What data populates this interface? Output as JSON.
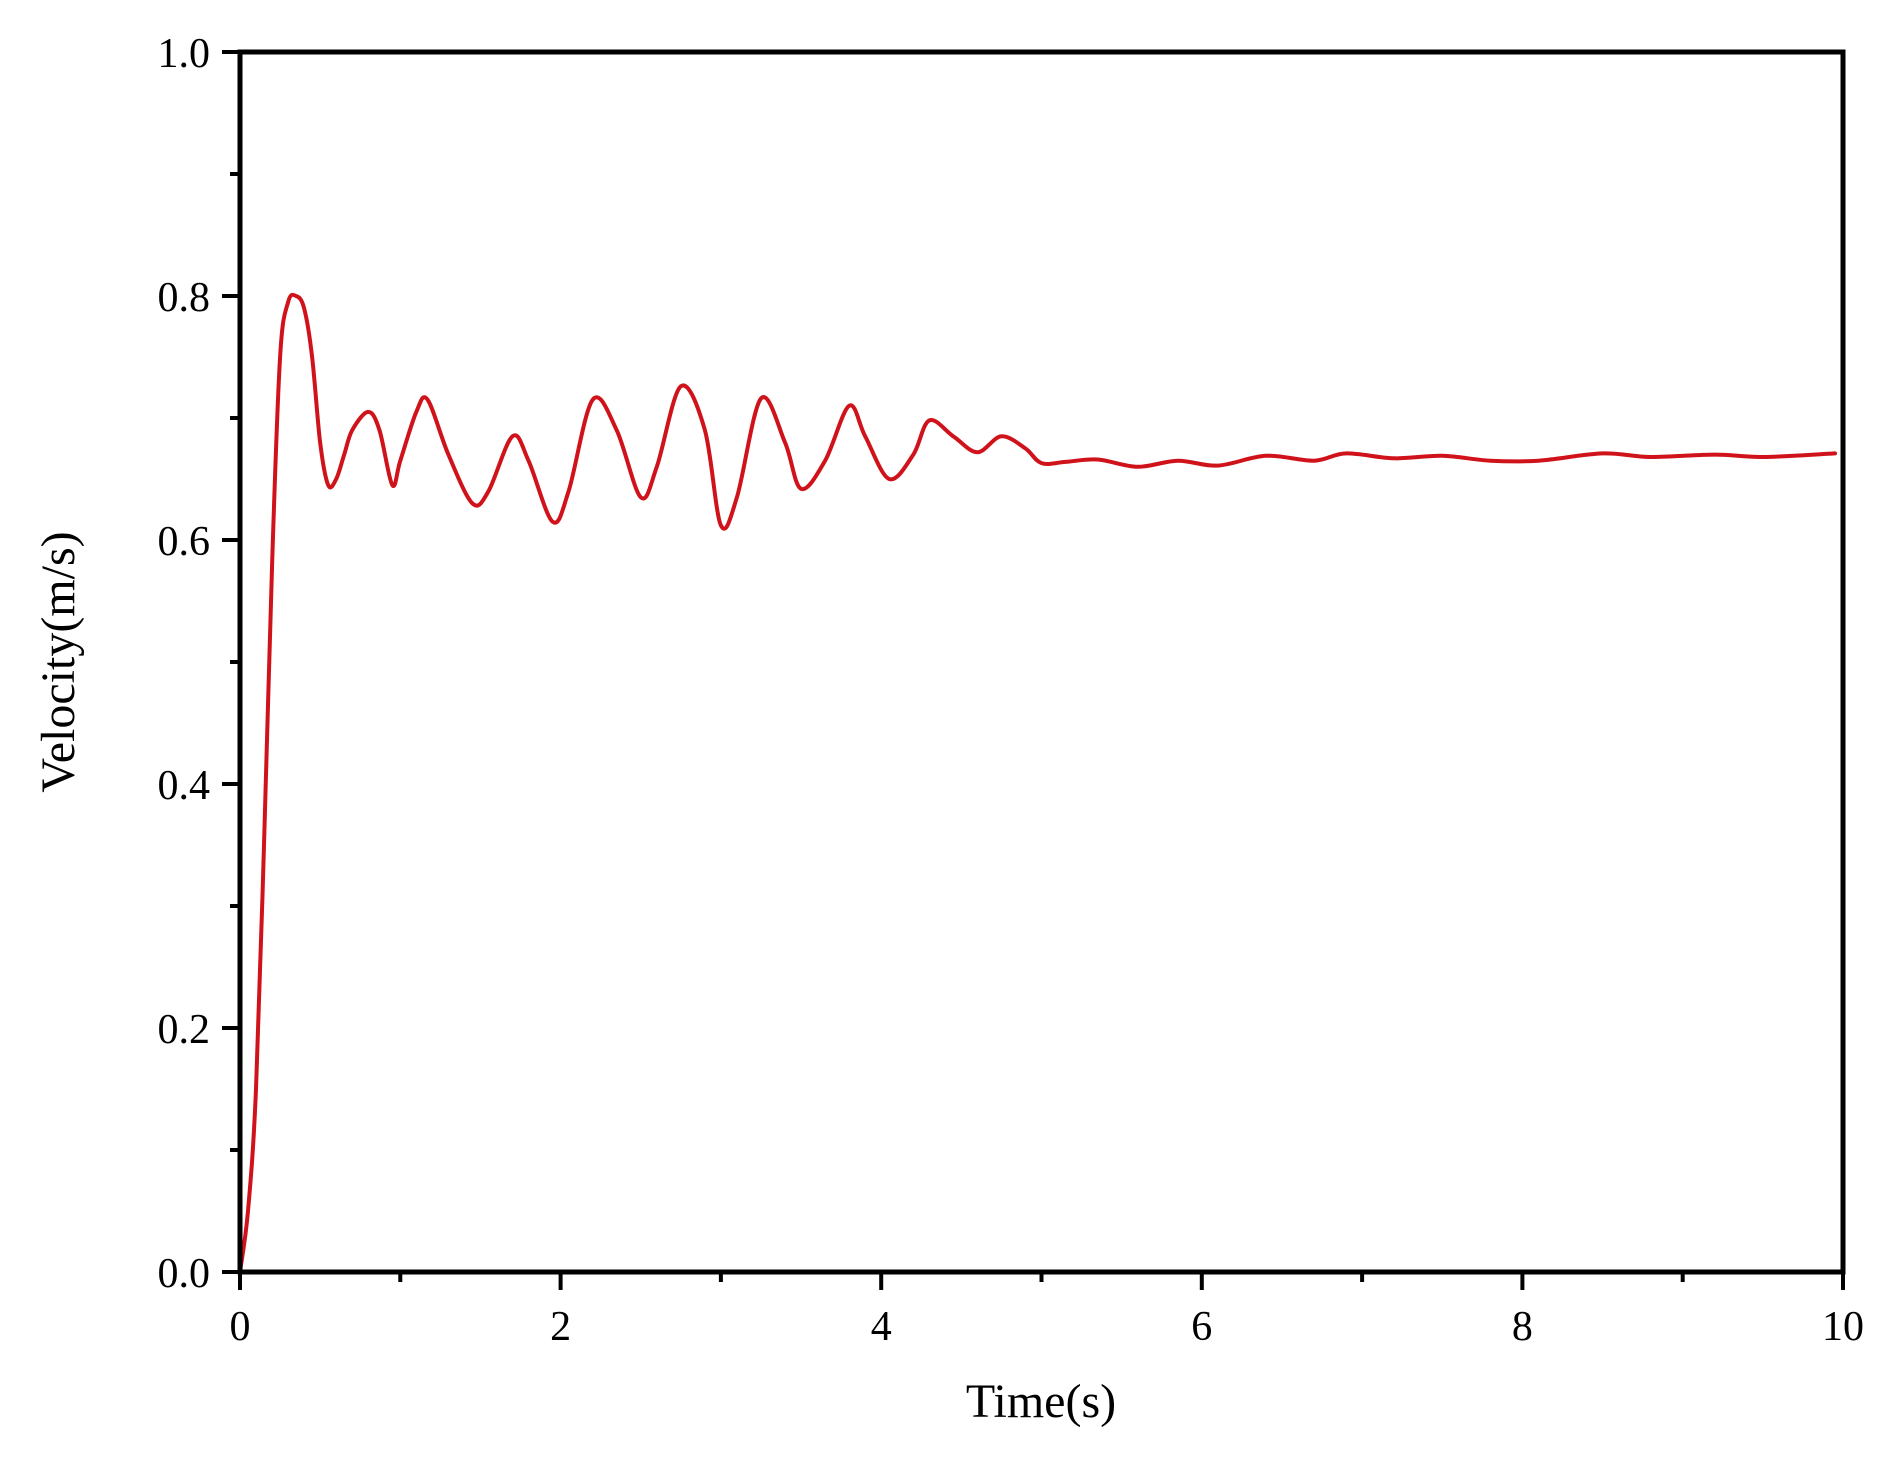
{
  "chart_data": {
    "type": "line",
    "title": "",
    "xlabel": "Time(s)",
    "ylabel": "Velocity(m/s)",
    "xlim": [
      0,
      10
    ],
    "ylim": [
      0,
      1.0
    ],
    "x_ticks": [
      0,
      2,
      4,
      6,
      8,
      10
    ],
    "x_tick_labels": [
      "0",
      "2",
      "4",
      "6",
      "8",
      "10"
    ],
    "y_ticks": [
      0.0,
      0.2,
      0.4,
      0.6,
      0.8,
      1.0
    ],
    "y_tick_labels": [
      "0.0",
      "0.2",
      "0.4",
      "0.6",
      "0.8",
      "1.0"
    ],
    "grid": false,
    "legend": "none",
    "line_color": "#d0121b",
    "series": [
      {
        "x": [
          0,
          0.05,
          0.1,
          0.15,
          0.2,
          0.25,
          0.3,
          0.35,
          0.4,
          0.45,
          0.5,
          0.55,
          0.6,
          0.65,
          0.7,
          0.8,
          0.87,
          0.95,
          1.0,
          1.1,
          1.17,
          1.3,
          1.45,
          1.55,
          1.7,
          1.8,
          1.95,
          2.05,
          2.2,
          2.35,
          2.5,
          2.6,
          2.75,
          2.9,
          3.0,
          3.1,
          3.25,
          3.4,
          3.5,
          3.65,
          3.8,
          3.9,
          4.05,
          4.2,
          4.3,
          4.45,
          4.6,
          4.75,
          4.9,
          5.0,
          5.15,
          5.35,
          5.6,
          5.85,
          6.1,
          6.4,
          6.7,
          6.9,
          7.2,
          7.5,
          7.8,
          8.1,
          8.5,
          8.8,
          9.2,
          9.5,
          9.95
        ],
        "y": [
          0.0,
          0.05,
          0.15,
          0.35,
          0.58,
          0.75,
          0.795,
          0.8,
          0.79,
          0.75,
          0.68,
          0.645,
          0.65,
          0.67,
          0.69,
          0.705,
          0.69,
          0.645,
          0.665,
          0.705,
          0.715,
          0.67,
          0.63,
          0.64,
          0.685,
          0.665,
          0.615,
          0.64,
          0.715,
          0.69,
          0.635,
          0.66,
          0.726,
          0.69,
          0.612,
          0.635,
          0.716,
          0.68,
          0.642,
          0.665,
          0.71,
          0.685,
          0.65,
          0.67,
          0.698,
          0.685,
          0.672,
          0.685,
          0.675,
          0.663,
          0.664,
          0.666,
          0.66,
          0.665,
          0.661,
          0.669,
          0.665,
          0.671,
          0.667,
          0.669,
          0.665,
          0.665,
          0.671,
          0.668,
          0.67,
          0.668,
          0.671
        ]
      }
    ]
  }
}
